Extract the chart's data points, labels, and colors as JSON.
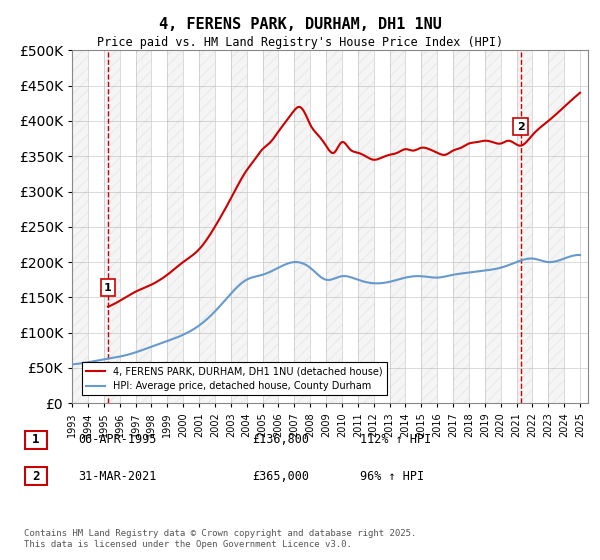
{
  "title": "4, FERENS PARK, DURHAM, DH1 1NU",
  "subtitle": "Price paid vs. HM Land Registry's House Price Index (HPI)",
  "legend_label1": "4, FERENS PARK, DURHAM, DH1 1NU (detached house)",
  "legend_label2": "HPI: Average price, detached house, County Durham",
  "annotation1_label": "1",
  "annotation1_date": "06-APR-1995",
  "annotation1_price": "£136,800",
  "annotation1_hpi": "112% ↑ HPI",
  "annotation1_year": 1995.27,
  "annotation1_value": 136800,
  "annotation2_label": "2",
  "annotation2_date": "31-MAR-2021",
  "annotation2_price": "£365,000",
  "annotation2_hpi": "96% ↑ HPI",
  "annotation2_year": 2021.25,
  "annotation2_value": 365000,
  "footer": "Contains HM Land Registry data © Crown copyright and database right 2025.\nThis data is licensed under the Open Government Licence v3.0.",
  "ylim": [
    0,
    500000
  ],
  "ytick_step": 50000,
  "background_color": "#ffffff",
  "grid_color": "#cccccc",
  "line1_color": "#cc0000",
  "line2_color": "#6699cc",
  "vline_color": "#cc0000",
  "hpi_years": [
    1993,
    1994,
    1995,
    1996,
    1997,
    1998,
    1999,
    2000,
    2001,
    2002,
    2003,
    2004,
    2005,
    2006,
    2007,
    2008,
    2009,
    2010,
    2011,
    2012,
    2013,
    2014,
    2015,
    2016,
    2017,
    2018,
    2019,
    2020,
    2021,
    2022,
    2023,
    2024,
    2025
  ],
  "hpi_values": [
    55000,
    58000,
    62000,
    66000,
    72000,
    80000,
    88000,
    97000,
    110000,
    130000,
    155000,
    175000,
    182000,
    192000,
    200000,
    192000,
    175000,
    180000,
    175000,
    170000,
    172000,
    178000,
    180000,
    178000,
    182000,
    185000,
    188000,
    192000,
    200000,
    205000,
    200000,
    205000,
    210000
  ],
  "prop_years": [
    1995.27,
    1996,
    1997,
    1998,
    1999,
    2000,
    2001,
    2002,
    2003,
    2004,
    2004.5,
    2005,
    2005.5,
    2006,
    2006.5,
    2007,
    2007.3,
    2007.8,
    2008,
    2008.5,
    2009,
    2009.5,
    2010,
    2010.5,
    2011,
    2011.5,
    2012,
    2012.5,
    2013,
    2013.5,
    2014,
    2014.5,
    2015,
    2015.5,
    2016,
    2016.5,
    2017,
    2017.5,
    2018,
    2018.5,
    2019,
    2019.5,
    2020,
    2020.5,
    2021.25,
    2022,
    2023,
    2024,
    2025
  ],
  "prop_values": [
    136800,
    145000,
    158000,
    168000,
    182000,
    200000,
    218000,
    250000,
    290000,
    330000,
    345000,
    360000,
    370000,
    385000,
    400000,
    415000,
    420000,
    405000,
    395000,
    380000,
    365000,
    355000,
    370000,
    360000,
    355000,
    350000,
    345000,
    348000,
    352000,
    355000,
    360000,
    358000,
    362000,
    360000,
    355000,
    352000,
    358000,
    362000,
    368000,
    370000,
    372000,
    370000,
    368000,
    372000,
    365000,
    380000,
    400000,
    420000,
    440000
  ]
}
